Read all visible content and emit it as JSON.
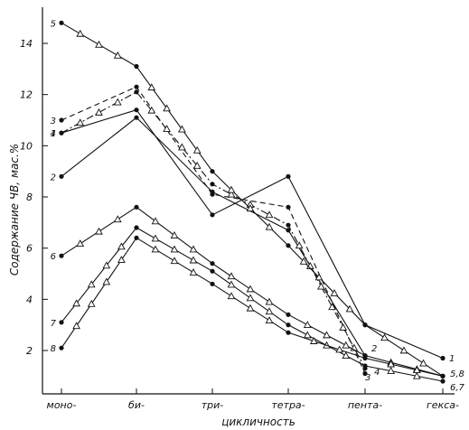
{
  "chart_data": {
    "type": "line",
    "title": "",
    "xlabel": "цикличность",
    "ylabel": "Содержание ЧВ, мас.%",
    "categories": [
      "моно-",
      "би-",
      "три-",
      "тетра-",
      "пента-",
      "гекса-"
    ],
    "ylim": [
      0.5,
      15.2
    ],
    "yticks": [
      "2",
      "4",
      "6",
      "8",
      "10",
      "12",
      "14"
    ],
    "grid": false,
    "legend": "none",
    "series": [
      {
        "label": "1",
        "dash": "solid",
        "values": [
          10.5,
          11.4,
          7.3,
          8.8,
          3.0,
          1.7
        ]
      },
      {
        "label": "2",
        "dash": "solid",
        "values": [
          8.8,
          11.1,
          8.2,
          6.7,
          1.8,
          null
        ]
      },
      {
        "label": "3",
        "dash": "dashed",
        "values": [
          11.0,
          12.3,
          8.1,
          7.6,
          1.1,
          null
        ]
      },
      {
        "label": "4",
        "dash": "dashdot",
        "values": [
          10.5,
          12.1,
          8.5,
          6.9,
          1.3,
          null
        ]
      },
      {
        "label": "5",
        "dash": "solid",
        "values": [
          14.8,
          13.1,
          9.0,
          6.1,
          3.0,
          1.0
        ]
      },
      {
        "label": "6",
        "dash": "solid",
        "values": [
          5.7,
          7.6,
          5.4,
          3.4,
          1.8,
          1.0
        ]
      },
      {
        "label": "7",
        "dash": "solid",
        "values": [
          3.1,
          6.8,
          5.1,
          3.0,
          1.4,
          0.8
        ]
      },
      {
        "label": "8",
        "dash": "solid",
        "values": [
          2.1,
          6.4,
          4.6,
          2.7,
          1.7,
          1.0
        ]
      }
    ],
    "end_labels": [
      "1",
      "2",
      "3",
      "4",
      "5,8",
      "6,7"
    ]
  }
}
